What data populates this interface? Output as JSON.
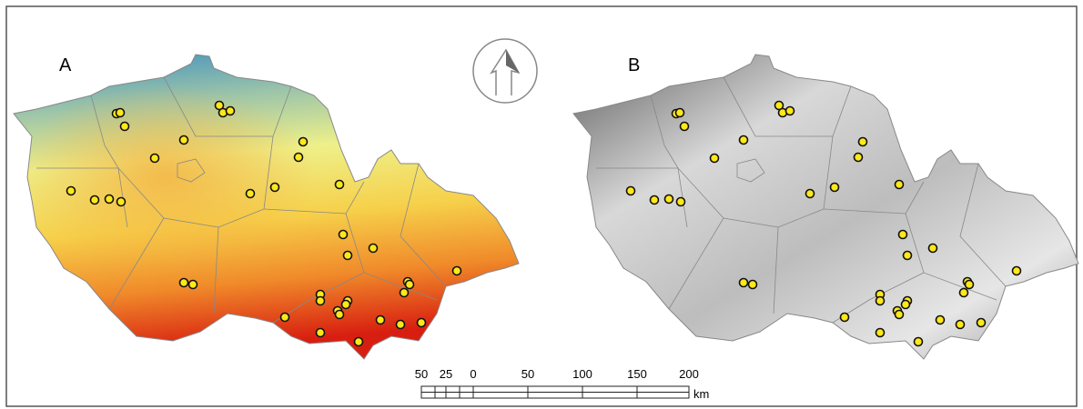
{
  "panels": [
    {
      "label": "A"
    },
    {
      "label": "B"
    }
  ],
  "scale_bar": {
    "labels": [
      50,
      25,
      0,
      50,
      100,
      150,
      200
    ],
    "unit": "km"
  }
}
